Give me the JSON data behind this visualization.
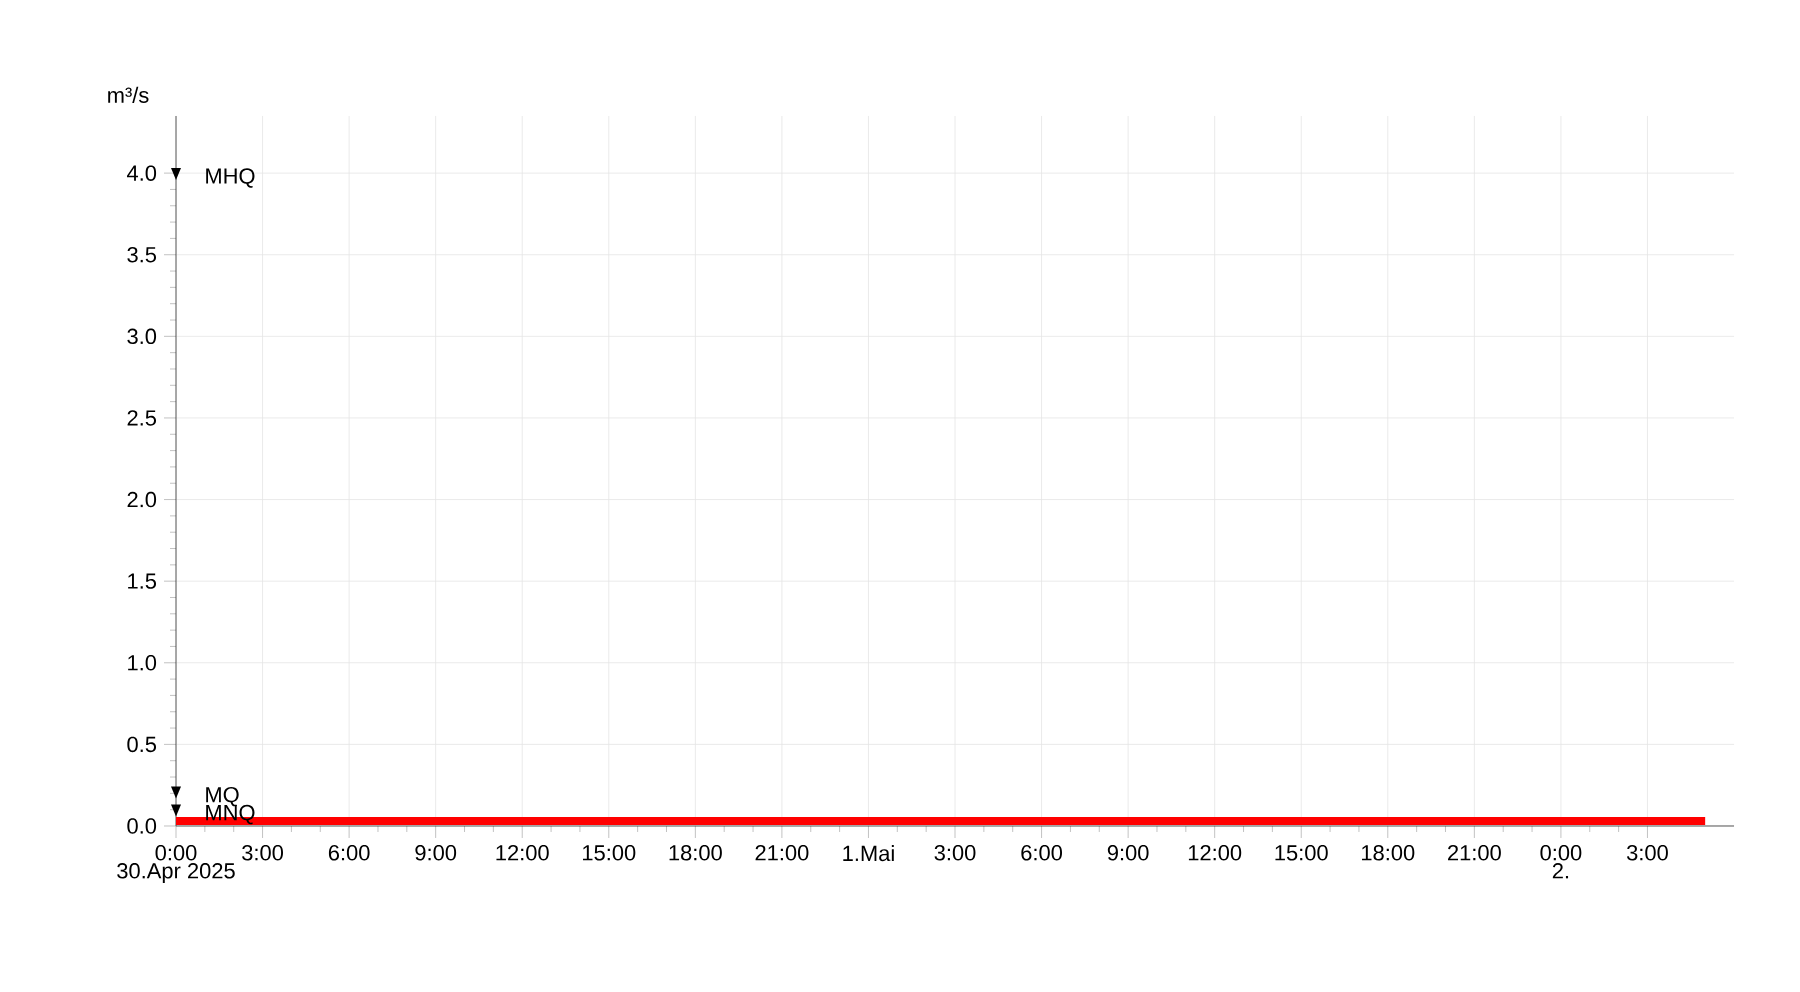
{
  "chart_data": {
    "type": "line",
    "ylabel": "m³/s",
    "x": [
      "2025-04-30T00:00",
      "2025-04-30T12:00",
      "2025-05-01T00:00",
      "2025-05-01T12:00",
      "2025-05-02T00:00",
      "2025-05-02T05:00"
    ],
    "series": [
      {
        "color": "#ff0000",
        "values": [
          0.03,
          0.03,
          0.03,
          0.03,
          0.03,
          0.03
        ]
      }
    ],
    "xlim": [
      "2025-04-30T00:00",
      "2025-05-02T06:00"
    ],
    "ylim": [
      0,
      4.35
    ],
    "xticks": [
      {
        "value": "2025-04-30T00:00",
        "label": "0:00"
      },
      {
        "value": "2025-04-30T03:00",
        "label": "3:00"
      },
      {
        "value": "2025-04-30T06:00",
        "label": "6:00"
      },
      {
        "value": "2025-04-30T09:00",
        "label": "9:00"
      },
      {
        "value": "2025-04-30T12:00",
        "label": "12:00"
      },
      {
        "value": "2025-04-30T15:00",
        "label": "15:00"
      },
      {
        "value": "2025-04-30T18:00",
        "label": "18:00"
      },
      {
        "value": "2025-04-30T21:00",
        "label": "21:00"
      },
      {
        "value": "2025-05-01T00:00",
        "label": "1.Mai"
      },
      {
        "value": "2025-05-01T03:00",
        "label": "3:00"
      },
      {
        "value": "2025-05-01T06:00",
        "label": "6:00"
      },
      {
        "value": "2025-05-01T09:00",
        "label": "9:00"
      },
      {
        "value": "2025-05-01T12:00",
        "label": "12:00"
      },
      {
        "value": "2025-05-01T15:00",
        "label": "15:00"
      },
      {
        "value": "2025-05-01T18:00",
        "label": "18:00"
      },
      {
        "value": "2025-05-01T21:00",
        "label": "21:00"
      },
      {
        "value": "2025-05-02T00:00",
        "label": "0:00"
      },
      {
        "value": "2025-05-02T03:00",
        "label": "3:00"
      }
    ],
    "x2lim": [
      "2025-04-30T00:00",
      "2025-05-02T06:00"
    ],
    "x2ticks": [
      {
        "value": "2025-04-30",
        "label": "30.Apr 2025"
      },
      {
        "value": "2025-05-02",
        "label": "2."
      }
    ],
    "yticks": [
      {
        "value": 0,
        "label": "0.0"
      },
      {
        "value": 0.5,
        "label": "0.5"
      },
      {
        "value": 1,
        "label": "1.0"
      },
      {
        "value": 1.5,
        "label": "1.5"
      },
      {
        "value": 2,
        "label": "2.0"
      },
      {
        "value": 2.5,
        "label": "2.5"
      },
      {
        "value": 3,
        "label": "3.0"
      },
      {
        "value": 3.5,
        "label": "3.5"
      },
      {
        "value": 4,
        "label": "4.0"
      }
    ],
    "annotations": [
      {
        "text": "MHQ",
        "x": "2025-04-30T00:00",
        "y": 3.97
      },
      {
        "text": "MQ",
        "x": "2025-04-30T00:00",
        "y": 0.18
      },
      {
        "text": "MNQ",
        "x": "2025-04-30T00:00",
        "y": 0.07
      }
    ],
    "grid": true,
    "marker": "none",
    "line_style": "solid"
  }
}
